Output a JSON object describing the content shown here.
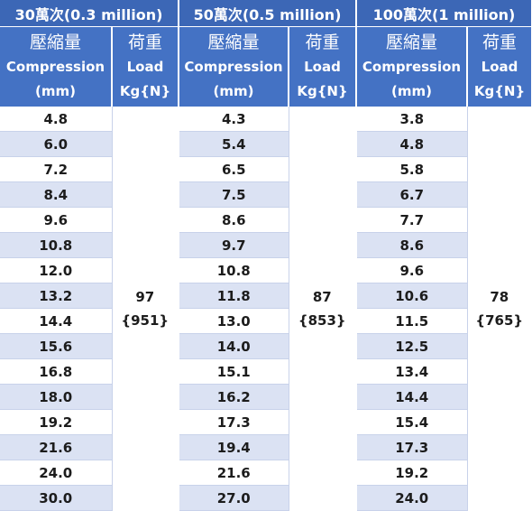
{
  "groups": [
    {
      "title": "30萬次(0.3 million)",
      "compression_header": [
        "壓縮量",
        "Compression",
        "(mm)"
      ],
      "load_header": [
        "荷重",
        "Load",
        "Kg{N}"
      ],
      "compression": [
        "4.8",
        "6.0",
        "7.2",
        "8.4",
        "9.6",
        "10.8",
        "12.0",
        "13.2",
        "14.4",
        "15.6",
        "16.8",
        "18.0",
        "19.2",
        "21.6",
        "24.0",
        "30.0"
      ],
      "load": [
        "97",
        "{951}"
      ]
    },
    {
      "title": "50萬次(0.5 million)",
      "compression_header": [
        "壓縮量",
        "Compression",
        "(mm)"
      ],
      "load_header": [
        "荷重",
        "Load",
        "Kg{N}"
      ],
      "compression": [
        "4.3",
        "5.4",
        "6.5",
        "7.5",
        "8.6",
        "9.7",
        "10.8",
        "11.8",
        "13.0",
        "14.0",
        "15.1",
        "16.2",
        "17.3",
        "19.4",
        "21.6",
        "27.0"
      ],
      "load": [
        "87",
        "{853}"
      ]
    },
    {
      "title": "100萬次(1 million)",
      "compression_header": [
        "壓縮量",
        "Compression",
        "(mm)"
      ],
      "load_header": [
        "荷重",
        "Load",
        "Kg{N}"
      ],
      "compression": [
        "3.8",
        "4.8",
        "5.8",
        "6.7",
        "7.7",
        "8.6",
        "9.6",
        "10.6",
        "11.5",
        "12.5",
        "13.4",
        "14.4",
        "15.4",
        "17.3",
        "19.2",
        "24.0"
      ],
      "load": [
        "78",
        "{765}"
      ]
    }
  ]
}
